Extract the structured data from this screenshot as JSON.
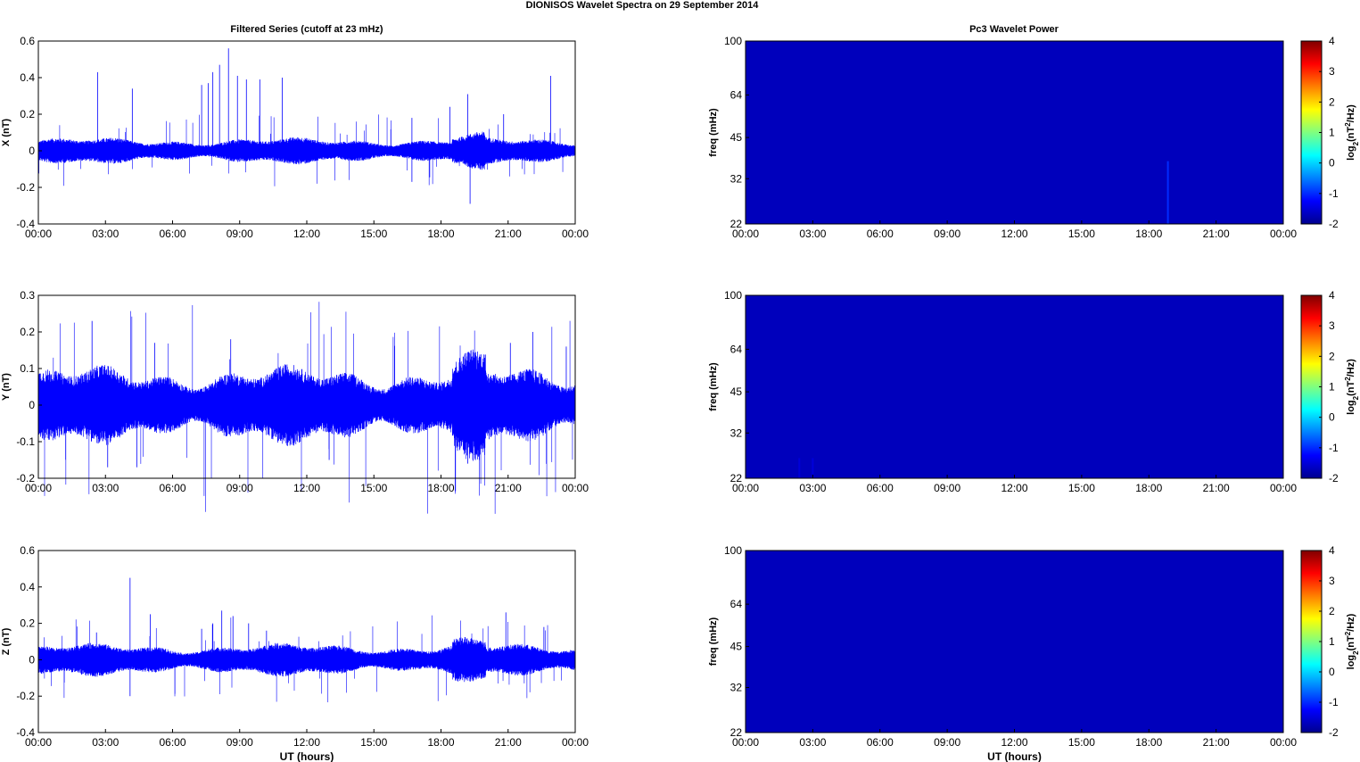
{
  "figure": {
    "title": "DIONISOS Wavelet Spectra on 29 September 2014",
    "left_column_title": "Filtered Series (cutoff at 23 mHz)",
    "right_column_title": "Pc3 Wavelet Power",
    "xlabel": "UT (hours)",
    "freq_label": "freq (mHz)",
    "colorbar_label": "log2(nT2/Hz)"
  },
  "colors": {
    "trace": "#0000ff",
    "background_power": "#00008f",
    "axes": "#000000"
  },
  "chart_data": [
    {
      "type": "line",
      "title": "Filtered Series (cutoff at 23 mHz)",
      "ylabel": "X (nT)",
      "xlabel": "",
      "ylim": [
        -0.4,
        0.6
      ],
      "yticks": [
        "-0.4",
        "-0.2",
        "0",
        "0.2",
        "0.4",
        "0.6"
      ],
      "xticks": [
        "00:00",
        "03:00",
        "06:00",
        "09:00",
        "12:00",
        "15:00",
        "18:00",
        "21:00",
        "00:00"
      ],
      "xlim_hours": [
        0,
        24
      ],
      "series": [
        {
          "noise_amplitude": 0.04,
          "spikes": [
            {
              "t": 2.65,
              "v": 0.43
            },
            {
              "t": 4.2,
              "v": 0.34
            },
            {
              "t": 7.3,
              "v": 0.36
            },
            {
              "t": 7.6,
              "v": 0.37
            },
            {
              "t": 7.8,
              "v": 0.43
            },
            {
              "t": 8.1,
              "v": 0.47
            },
            {
              "t": 8.5,
              "v": 0.56
            },
            {
              "t": 8.9,
              "v": 0.41
            },
            {
              "t": 9.3,
              "v": 0.39
            },
            {
              "t": 9.9,
              "v": 0.39
            },
            {
              "t": 10.9,
              "v": 0.4
            },
            {
              "t": 16.7,
              "v": 0.18
            },
            {
              "t": 18.4,
              "v": 0.24
            },
            {
              "t": 19.2,
              "v": 0.31
            },
            {
              "t": 19.3,
              "v": -0.29
            },
            {
              "t": 16.7,
              "v": -0.17
            },
            {
              "t": 20.8,
              "v": 0.2
            },
            {
              "t": 22.9,
              "v": 0.41
            }
          ]
        }
      ]
    },
    {
      "type": "line",
      "ylabel": "Y (nT)",
      "xlabel": "",
      "ylim": [
        -0.2,
        0.3
      ],
      "yticks": [
        "-0.2",
        "-0.1",
        "0",
        "0.1",
        "0.2",
        "0.3"
      ],
      "xticks": [
        "00:00",
        "03:00",
        "06:00",
        "09:00",
        "12:00",
        "15:00",
        "18:00",
        "21:00",
        "00:00"
      ],
      "xlim_hours": [
        0,
        24
      ],
      "series": [
        {
          "noise_amplitude": 0.06,
          "spikes": [
            {
              "t": 2.4,
              "v": 0.23
            },
            {
              "t": 3.1,
              "v": -0.17
            },
            {
              "t": 4.4,
              "v": -0.17
            },
            {
              "t": 5.2,
              "v": 0.17
            },
            {
              "t": 8.6,
              "v": 0.18
            },
            {
              "t": 13.0,
              "v": -0.15
            },
            {
              "t": 19.2,
              "v": -0.16
            },
            {
              "t": 21.1,
              "v": 0.17
            },
            {
              "t": 22.1,
              "v": 0.2
            },
            {
              "t": 23.6,
              "v": 0.16
            }
          ]
        }
      ]
    },
    {
      "type": "line",
      "ylabel": "Z (nT)",
      "xlabel": "UT (hours)",
      "ylim": [
        -0.4,
        0.6
      ],
      "yticks": [
        "-0.4",
        "-0.2",
        "0",
        "0.2",
        "0.4",
        "0.6"
      ],
      "xticks": [
        "00:00",
        "03:00",
        "06:00",
        "09:00",
        "12:00",
        "15:00",
        "18:00",
        "21:00",
        "00:00"
      ],
      "xlim_hours": [
        0,
        24
      ],
      "series": [
        {
          "noise_amplitude": 0.05,
          "spikes": [
            {
              "t": 2.6,
              "v": 0.15
            },
            {
              "t": 4.1,
              "v": 0.45
            },
            {
              "t": 4.1,
              "v": -0.2
            },
            {
              "t": 5.0,
              "v": 0.25
            },
            {
              "t": 7.3,
              "v": 0.17
            },
            {
              "t": 7.8,
              "v": 0.2
            },
            {
              "t": 8.2,
              "v": 0.27
            },
            {
              "t": 8.7,
              "v": 0.24
            },
            {
              "t": 9.4,
              "v": 0.2
            },
            {
              "t": 10.2,
              "v": 0.16
            },
            {
              "t": 20.9,
              "v": 0.26
            },
            {
              "t": 22.6,
              "v": 0.18
            }
          ]
        }
      ]
    },
    {
      "type": "heatmap",
      "title": "Pc3 Wavelet Power",
      "ylabel": "freq (mHz)",
      "xlabel": "",
      "yticks": [
        "22",
        "32",
        "45",
        "64",
        "100"
      ],
      "ylim_mhz": [
        22,
        100
      ],
      "yscale": "log",
      "xticks": [
        "00:00",
        "03:00",
        "06:00",
        "09:00",
        "12:00",
        "15:00",
        "18:00",
        "21:00",
        "00:00"
      ],
      "background_level": -1.7,
      "features": [
        {
          "t": 18.85,
          "f_min": 22,
          "f_max": 37,
          "level": -1.0
        }
      ],
      "colorbar": {
        "label": "log2(nT2/Hz)",
        "range": [
          -2,
          4
        ],
        "ticks": [
          "4",
          "3",
          "2",
          "1",
          "0",
          "-1",
          "-2"
        ]
      }
    },
    {
      "type": "heatmap",
      "ylabel": "freq (mHz)",
      "xlabel": "",
      "yticks": [
        "22",
        "32",
        "45",
        "64",
        "100"
      ],
      "ylim_mhz": [
        22,
        100
      ],
      "yscale": "log",
      "xticks": [
        "00:00",
        "03:00",
        "06:00",
        "09:00",
        "12:00",
        "15:00",
        "18:00",
        "21:00",
        "00:00"
      ],
      "background_level": -1.7,
      "features": [
        {
          "t": 2.4,
          "f_min": 22,
          "f_max": 26,
          "level": -1.5
        },
        {
          "t": 3.0,
          "f_min": 22,
          "f_max": 26,
          "level": -1.5
        }
      ],
      "colorbar": {
        "label": "log2(nT2/Hz)",
        "range": [
          -2,
          4
        ],
        "ticks": [
          "4",
          "3",
          "2",
          "1",
          "0",
          "-1",
          "-2"
        ]
      }
    },
    {
      "type": "heatmap",
      "ylabel": "freq (mHz)",
      "xlabel": "UT (hours)",
      "yticks": [
        "22",
        "32",
        "45",
        "64",
        "100"
      ],
      "ylim_mhz": [
        22,
        100
      ],
      "yscale": "log",
      "xticks": [
        "00:00",
        "03:00",
        "06:00",
        "09:00",
        "12:00",
        "15:00",
        "18:00",
        "21:00",
        "00:00"
      ],
      "background_level": -1.7,
      "features": [],
      "colorbar": {
        "label": "log2(nT2/Hz)",
        "range": [
          -2,
          4
        ],
        "ticks": [
          "4",
          "3",
          "2",
          "1",
          "0",
          "-1",
          "-2"
        ]
      }
    }
  ]
}
